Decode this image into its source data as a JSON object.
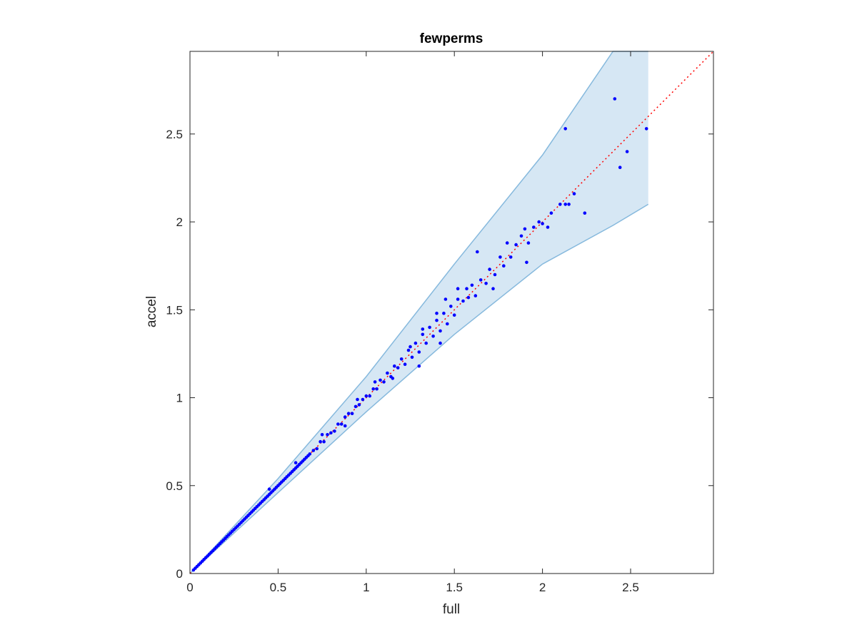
{
  "chart_data": {
    "type": "scatter",
    "title": "fewperms",
    "xlabel": "full",
    "ylabel": "accel",
    "xlim": [
      0,
      2.97
    ],
    "ylim": [
      0,
      2.97
    ],
    "xticks": [
      "0",
      "0.5",
      "1",
      "1.5",
      "2",
      "2.5"
    ],
    "yticks": [
      "0",
      "0.5",
      "1",
      "1.5",
      "2",
      "2.5"
    ],
    "grid": false,
    "reference_line": {
      "style": "dotted",
      "x": [
        0,
        2.97
      ],
      "y": [
        0,
        2.97
      ]
    },
    "band": {
      "x": [
        0,
        0.5,
        1.0,
        1.5,
        2.0,
        2.4,
        2.6
      ],
      "upper": [
        0,
        0.54,
        1.12,
        1.76,
        2.38,
        2.97,
        2.97
      ],
      "lower": [
        0,
        0.46,
        0.92,
        1.36,
        1.76,
        1.98,
        2.1
      ]
    },
    "series": [
      {
        "x": [
          0.02,
          0.03,
          0.04,
          0.05,
          0.06,
          0.07,
          0.08,
          0.09,
          0.1,
          0.11,
          0.12,
          0.13,
          0.14,
          0.15,
          0.16,
          0.17,
          0.18,
          0.19,
          0.2,
          0.21,
          0.22,
          0.23,
          0.24,
          0.25,
          0.26,
          0.27,
          0.28,
          0.29,
          0.3,
          0.31,
          0.32,
          0.33,
          0.34,
          0.35,
          0.36,
          0.37,
          0.38,
          0.39,
          0.4,
          0.41,
          0.42,
          0.43,
          0.44,
          0.45,
          0.46,
          0.47,
          0.48,
          0.49,
          0.5,
          0.51,
          0.52,
          0.53,
          0.54,
          0.55,
          0.56,
          0.57,
          0.58,
          0.59,
          0.6,
          0.61,
          0.62,
          0.63,
          0.64,
          0.65,
          0.66,
          0.67,
          0.68,
          0.7,
          0.72,
          0.74,
          0.76,
          0.78,
          0.8,
          0.82,
          0.84,
          0.86,
          0.88,
          0.9,
          0.92,
          0.94,
          0.96,
          0.98,
          1.0,
          1.02,
          1.04,
          1.06,
          1.08,
          1.1,
          1.12,
          1.14,
          1.16,
          1.18,
          1.2,
          1.22,
          1.24,
          1.26,
          1.28,
          1.3,
          1.32,
          1.34,
          1.36,
          1.38,
          1.4,
          1.42,
          1.44,
          1.46,
          1.48,
          1.5,
          1.52,
          1.55,
          1.58,
          1.6,
          1.62,
          1.65,
          1.68,
          1.7,
          1.73,
          1.76,
          1.78,
          1.8,
          1.82,
          1.85,
          1.88,
          1.9,
          1.92,
          1.95,
          1.98,
          2.0,
          2.03,
          2.05,
          2.1,
          2.13,
          2.15,
          2.18,
          2.24,
          2.41,
          2.44,
          2.48,
          2.59,
          0.45,
          0.6,
          0.75,
          0.88,
          0.95,
          1.05,
          1.15,
          1.25,
          1.32,
          1.4,
          1.45,
          1.52,
          1.63,
          1.72,
          1.91,
          2.13,
          1.3,
          1.42,
          1.57
        ],
        "y": [
          0.02,
          0.03,
          0.04,
          0.05,
          0.06,
          0.07,
          0.08,
          0.09,
          0.1,
          0.11,
          0.12,
          0.13,
          0.14,
          0.15,
          0.16,
          0.17,
          0.18,
          0.19,
          0.2,
          0.21,
          0.22,
          0.23,
          0.24,
          0.25,
          0.26,
          0.27,
          0.28,
          0.29,
          0.3,
          0.31,
          0.32,
          0.33,
          0.34,
          0.35,
          0.36,
          0.37,
          0.38,
          0.39,
          0.4,
          0.41,
          0.42,
          0.43,
          0.44,
          0.45,
          0.46,
          0.47,
          0.48,
          0.49,
          0.5,
          0.51,
          0.52,
          0.53,
          0.54,
          0.55,
          0.56,
          0.57,
          0.58,
          0.59,
          0.6,
          0.61,
          0.62,
          0.63,
          0.64,
          0.65,
          0.66,
          0.67,
          0.68,
          0.7,
          0.71,
          0.75,
          0.75,
          0.79,
          0.8,
          0.81,
          0.85,
          0.85,
          0.89,
          0.91,
          0.91,
          0.95,
          0.96,
          0.99,
          1.01,
          1.01,
          1.05,
          1.05,
          1.1,
          1.09,
          1.14,
          1.12,
          1.18,
          1.17,
          1.22,
          1.19,
          1.27,
          1.23,
          1.31,
          1.26,
          1.36,
          1.31,
          1.4,
          1.35,
          1.44,
          1.38,
          1.48,
          1.42,
          1.52,
          1.47,
          1.56,
          1.55,
          1.57,
          1.64,
          1.58,
          1.67,
          1.65,
          1.73,
          1.7,
          1.8,
          1.75,
          1.88,
          1.8,
          1.87,
          1.92,
          1.96,
          1.88,
          1.97,
          2.0,
          1.99,
          1.97,
          2.05,
          2.1,
          2.53,
          2.1,
          2.16,
          2.05,
          2.7,
          2.31,
          2.4,
          2.53,
          0.48,
          0.63,
          0.79,
          0.84,
          0.99,
          1.09,
          1.11,
          1.29,
          1.39,
          1.48,
          1.56,
          1.62,
          1.83,
          1.62,
          1.77,
          2.1,
          1.18,
          1.31,
          1.62
        ]
      }
    ],
    "colors": {
      "points": "#0000ff",
      "reference_line": "#ff0000",
      "band_fill": "#d6e7f4",
      "band_edge": "#86b9dd",
      "axes": "#262626"
    }
  }
}
